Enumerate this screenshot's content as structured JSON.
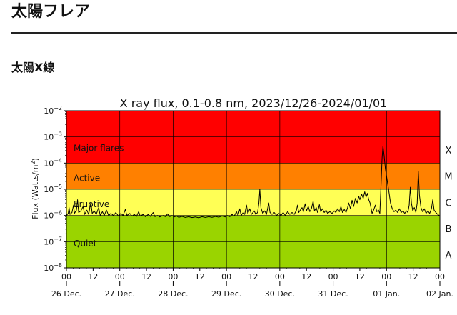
{
  "page": {
    "title": "太陽フレア",
    "section_title": "太陽X線"
  },
  "chart_data": {
    "type": "line",
    "title": "X ray flux, 0.1-0.8 nm, 2023/12/26-2024/01/01",
    "ylabel_base": "Flux (Watts/m",
    "ylabel_sup": "2",
    "ylabel_end": ")",
    "yscale": "log",
    "ylim_exponents": [
      -8,
      -2
    ],
    "y_ticks": [
      {
        "base": "10",
        "exp": "−8",
        "power": -8
      },
      {
        "base": "10",
        "exp": "−7",
        "power": -7
      },
      {
        "base": "10",
        "exp": "−6",
        "power": -6
      },
      {
        "base": "10",
        "exp": "−5",
        "power": -5
      },
      {
        "base": "10",
        "exp": "−4",
        "power": -4
      },
      {
        "base": "10",
        "exp": "−3",
        "power": -3
      },
      {
        "base": "10",
        "exp": "−2",
        "power": -2
      }
    ],
    "x_range_hours": [
      0,
      168
    ],
    "x_hour_ticks": [
      {
        "hour": 0,
        "label": "00"
      },
      {
        "hour": 12,
        "label": "12"
      },
      {
        "hour": 24,
        "label": "00"
      },
      {
        "hour": 36,
        "label": "12"
      },
      {
        "hour": 48,
        "label": "00"
      },
      {
        "hour": 60,
        "label": "12"
      },
      {
        "hour": 72,
        "label": "00"
      },
      {
        "hour": 84,
        "label": "12"
      },
      {
        "hour": 96,
        "label": "00"
      },
      {
        "hour": 108,
        "label": "12"
      },
      {
        "hour": 120,
        "label": "00"
      },
      {
        "hour": 132,
        "label": "12"
      },
      {
        "hour": 144,
        "label": "00"
      },
      {
        "hour": 156,
        "label": "12"
      },
      {
        "hour": 168,
        "label": "00"
      }
    ],
    "x_date_ticks": [
      {
        "hour": 0,
        "label": "26 Dec."
      },
      {
        "hour": 24,
        "label": "27 Dec."
      },
      {
        "hour": 48,
        "label": "28 Dec."
      },
      {
        "hour": 72,
        "label": "29 Dec."
      },
      {
        "hour": 96,
        "label": "30 Dec."
      },
      {
        "hour": 120,
        "label": "31 Dec."
      },
      {
        "hour": 144,
        "label": "01 Jan."
      },
      {
        "hour": 168,
        "label": "02 Jan."
      }
    ],
    "grid": true,
    "bands": [
      {
        "label": "Quiet",
        "from": -8,
        "to": -6,
        "color": "#9ad400"
      },
      {
        "label": "Eruptive",
        "from": -6,
        "to": -5,
        "color": "#ffff55"
      },
      {
        "label": "Active",
        "from": -5,
        "to": -4,
        "color": "#ff8000"
      },
      {
        "label": "Major flares",
        "from": -4,
        "to": -2,
        "color": "#ff0000"
      }
    ],
    "classes": [
      {
        "label": "A",
        "power": -7.5
      },
      {
        "label": "B",
        "power": -6.5
      },
      {
        "label": "C",
        "power": -5.5
      },
      {
        "label": "M",
        "power": -4.5
      },
      {
        "label": "X",
        "power": -3.5
      }
    ],
    "series": [
      {
        "color": "#000000",
        "points": [
          [
            0,
            1e-06
          ],
          [
            0.8,
            1.2e-06
          ],
          [
            1.2,
            2e-06
          ],
          [
            1.6,
            1.1e-06
          ],
          [
            2.5,
            1.3e-06
          ],
          [
            3.2,
            2.5e-06
          ],
          [
            3.6,
            1.2e-06
          ],
          [
            4.5,
            1.6e-06
          ],
          [
            5.0,
            4e-06
          ],
          [
            5.5,
            1.3e-06
          ],
          [
            6.5,
            1.5e-06
          ],
          [
            7.5,
            2.2e-06
          ],
          [
            8.2,
            1.1e-06
          ],
          [
            9.2,
            1.6e-06
          ],
          [
            10.0,
            1.1e-06
          ],
          [
            11.0,
            3.2e-06
          ],
          [
            11.6,
            1.2e-06
          ],
          [
            12.5,
            1.5e-06
          ],
          [
            13.4,
            1.1e-06
          ],
          [
            14.5,
            2e-06
          ],
          [
            15.2,
            1e-06
          ],
          [
            16.2,
            1.4e-06
          ],
          [
            17.0,
            1e-06
          ],
          [
            18.0,
            1.6e-06
          ],
          [
            19.0,
            1e-06
          ],
          [
            20.0,
            1.2e-06
          ],
          [
            21.2,
            1e-06
          ],
          [
            22.2,
            1.3e-06
          ],
          [
            23.4,
            9.5e-07
          ],
          [
            24.5,
            1.2e-06
          ],
          [
            25.5,
            1e-06
          ],
          [
            26.5,
            1.7e-06
          ],
          [
            27.2,
            1e-06
          ],
          [
            28.5,
            1.2e-06
          ],
          [
            29.5,
            9.5e-07
          ],
          [
            30.5,
            1.1e-06
          ],
          [
            31.5,
            9.2e-07
          ],
          [
            32.5,
            1.4e-06
          ],
          [
            33.2,
            9.5e-07
          ],
          [
            34.5,
            1.1e-06
          ],
          [
            35.5,
            9e-07
          ],
          [
            36.8,
            1.1e-06
          ],
          [
            37.8,
            9.2e-07
          ],
          [
            39.0,
            1.3e-06
          ],
          [
            39.8,
            9e-07
          ],
          [
            41.0,
            1e-06
          ],
          [
            42.0,
            8.8e-07
          ],
          [
            43.5,
            1e-06
          ],
          [
            44.5,
            9e-07
          ],
          [
            45.5,
            1.15e-06
          ],
          [
            46.5,
            9e-07
          ],
          [
            47.5,
            1e-06
          ],
          [
            48.5,
            8.8e-07
          ],
          [
            49.5,
            9.5e-07
          ],
          [
            50.5,
            8.5e-07
          ],
          [
            52.0,
            9.2e-07
          ],
          [
            53.5,
            8.4e-07
          ],
          [
            55.0,
            9e-07
          ],
          [
            56.5,
            8.3e-07
          ],
          [
            58.0,
            8.8e-07
          ],
          [
            59.5,
            8.2e-07
          ],
          [
            61.0,
            9e-07
          ],
          [
            62.5,
            8.4e-07
          ],
          [
            64.0,
            9e-07
          ],
          [
            65.5,
            8.5e-07
          ],
          [
            67.0,
            9.2e-07
          ],
          [
            68.5,
            8.6e-07
          ],
          [
            70.0,
            9.5e-07
          ],
          [
            71.5,
            8.8e-07
          ],
          [
            72.5,
            1e-06
          ],
          [
            73.5,
            9e-07
          ],
          [
            74.5,
            1.1e-06
          ],
          [
            75.5,
            9.5e-07
          ],
          [
            76.5,
            1.4e-06
          ],
          [
            77.2,
            1e-06
          ],
          [
            78.0,
            1.8e-06
          ],
          [
            78.6,
            1e-06
          ],
          [
            79.5,
            1.3e-06
          ],
          [
            80.2,
            1.1e-06
          ],
          [
            81.0,
            2.5e-06
          ],
          [
            81.6,
            1.2e-06
          ],
          [
            82.5,
            1.8e-06
          ],
          [
            83.2,
            1.1e-06
          ],
          [
            84.5,
            1.5e-06
          ],
          [
            85.2,
            1.1e-06
          ],
          [
            86.0,
            1.3e-06
          ],
          [
            86.6,
            3e-06
          ],
          [
            87.0,
            1e-05
          ],
          [
            87.5,
            2e-06
          ],
          [
            88.3,
            1.2e-06
          ],
          [
            89.2,
            1.5e-06
          ],
          [
            90.0,
            1.1e-06
          ],
          [
            91.0,
            3e-06
          ],
          [
            91.6,
            1.3e-06
          ],
          [
            92.5,
            1.1e-06
          ],
          [
            93.5,
            1.3e-06
          ],
          [
            94.5,
            1e-06
          ],
          [
            95.5,
            1.2e-06
          ],
          [
            96.5,
            1e-06
          ],
          [
            97.5,
            1.3e-06
          ],
          [
            98.5,
            1e-06
          ],
          [
            99.5,
            1.4e-06
          ],
          [
            100.5,
            1.1e-06
          ],
          [
            101.5,
            1.3e-06
          ],
          [
            102.5,
            1.1e-06
          ],
          [
            103.5,
            1.6e-06
          ],
          [
            104.0,
            2.5e-06
          ],
          [
            104.5,
            1.3e-06
          ],
          [
            105.2,
            1.6e-06
          ],
          [
            106.0,
            2e-06
          ],
          [
            106.6,
            1.4e-06
          ],
          [
            107.4,
            2.8e-06
          ],
          [
            108.0,
            1.5e-06
          ],
          [
            108.8,
            2.2e-06
          ],
          [
            109.5,
            1.4e-06
          ],
          [
            110.2,
            1.8e-06
          ],
          [
            111.0,
            3.5e-06
          ],
          [
            111.6,
            1.5e-06
          ],
          [
            112.4,
            2e-06
          ],
          [
            113.0,
            1.3e-06
          ],
          [
            113.8,
            2.6e-06
          ],
          [
            114.4,
            1.4e-06
          ],
          [
            115.2,
            1.8e-06
          ],
          [
            116.0,
            1.3e-06
          ],
          [
            116.8,
            1.6e-06
          ],
          [
            117.5,
            1.2e-06
          ],
          [
            118.5,
            1.4e-06
          ],
          [
            119.5,
            1.2e-06
          ],
          [
            120.5,
            1.5e-06
          ],
          [
            121.2,
            1.3e-06
          ],
          [
            122.0,
            1.8e-06
          ],
          [
            122.8,
            1.4e-06
          ],
          [
            123.5,
            2.2e-06
          ],
          [
            124.2,
            1.3e-06
          ],
          [
            125.0,
            1.7e-06
          ],
          [
            125.8,
            1.3e-06
          ],
          [
            126.5,
            2e-06
          ],
          [
            127.0,
            3e-06
          ],
          [
            127.8,
            1.8e-06
          ],
          [
            128.5,
            3.8e-06
          ],
          [
            129.2,
            2.2e-06
          ],
          [
            130.0,
            4.5e-06
          ],
          [
            130.8,
            3e-06
          ],
          [
            131.5,
            5.5e-06
          ],
          [
            132.0,
            4e-06
          ],
          [
            132.8,
            6.5e-06
          ],
          [
            133.5,
            4.5e-06
          ],
          [
            134.2,
            8e-06
          ],
          [
            134.8,
            5e-06
          ],
          [
            135.4,
            7e-06
          ],
          [
            136.0,
            4e-06
          ],
          [
            136.6,
            3e-06
          ],
          [
            137.0,
            2e-06
          ],
          [
            137.5,
            1.2e-06
          ],
          [
            138.2,
            1.6e-06
          ],
          [
            139.0,
            2.5e-06
          ],
          [
            139.6,
            1.4e-06
          ],
          [
            140.4,
            1.6e-06
          ],
          [
            141.0,
            1.2e-06
          ],
          [
            141.6,
            2e-05
          ],
          [
            142.0,
            0.00015
          ],
          [
            142.4,
            0.00045
          ],
          [
            142.9,
            0.0002
          ],
          [
            143.5,
            6e-05
          ],
          [
            144.2,
            2.5e-05
          ],
          [
            145.0,
            9e-06
          ],
          [
            145.8,
            3e-06
          ],
          [
            146.6,
            1.8e-06
          ],
          [
            147.4,
            1.4e-06
          ],
          [
            148.2,
            1.6e-06
          ],
          [
            149.0,
            1.3e-06
          ],
          [
            149.8,
            1.8e-06
          ],
          [
            150.6,
            1.3e-06
          ],
          [
            151.4,
            1.5e-06
          ],
          [
            152.2,
            1.2e-06
          ],
          [
            153.0,
            1.5e-06
          ],
          [
            153.6,
            1.3e-06
          ],
          [
            154.2,
            2.5e-06
          ],
          [
            154.7,
            1.2e-05
          ],
          [
            155.2,
            3e-06
          ],
          [
            155.8,
            1.5e-06
          ],
          [
            156.5,
            2e-06
          ],
          [
            157.2,
            1.3e-06
          ],
          [
            157.8,
            3e-06
          ],
          [
            158.3,
            4.8e-05
          ],
          [
            158.8,
            6e-06
          ],
          [
            159.5,
            2e-06
          ],
          [
            160.2,
            1.4e-06
          ],
          [
            161.0,
            1.8e-06
          ],
          [
            161.8,
            1.2e-06
          ],
          [
            162.6,
            1.5e-06
          ],
          [
            163.4,
            1.2e-06
          ],
          [
            164.2,
            1.8e-06
          ],
          [
            164.8,
            4e-06
          ],
          [
            165.4,
            1.6e-06
          ],
          [
            166.2,
            1.3e-06
          ],
          [
            167.0,
            1.1e-06
          ],
          [
            167.7,
            1e-06
          ]
        ]
      }
    ]
  }
}
